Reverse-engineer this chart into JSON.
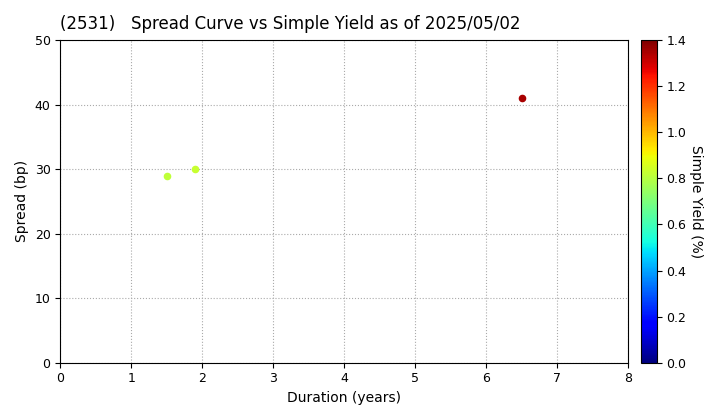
{
  "title": "(2531)   Spread Curve vs Simple Yield as of 2025/05/02",
  "xlabel": "Duration (years)",
  "ylabel": "Spread (bp)",
  "colorbar_label": "Simple Yield (%)",
  "xlim": [
    0,
    8
  ],
  "ylim": [
    0,
    50
  ],
  "xticks": [
    0,
    1,
    2,
    3,
    4,
    5,
    6,
    7,
    8
  ],
  "yticks": [
    0,
    10,
    20,
    30,
    40,
    50
  ],
  "colorbar_min": 0.0,
  "colorbar_max": 1.4,
  "colorbar_ticks": [
    0.0,
    0.2,
    0.4,
    0.6,
    0.8,
    1.0,
    1.2,
    1.4
  ],
  "points": [
    {
      "duration": 1.5,
      "spread": 29,
      "simple_yield": 0.81
    },
    {
      "duration": 1.9,
      "spread": 30,
      "simple_yield": 0.83
    },
    {
      "duration": 6.5,
      "spread": 41,
      "simple_yield": 1.35
    }
  ],
  "background_color": "#ffffff",
  "grid_color": "#aaaaaa",
  "title_fontsize": 12,
  "axis_fontsize": 10,
  "tick_fontsize": 9,
  "marker_size": 20
}
